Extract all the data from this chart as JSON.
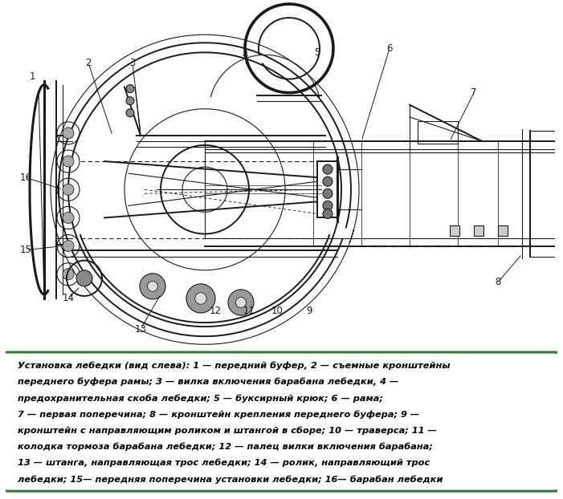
{
  "caption_lines": [
    "Установка лебедки (вид слева): 1 — передний буфер, 2 — съемные кронштейны",
    "переднего буфера рамы; 3 — вилка включения барабана лебедки, 4 —",
    "предохранительная скоба лебедки; 5 — буксирный крюк; 6 — рама;",
    "7 — первая поперечина; 8 — кронштейн крепления переднего буфера; 9 —",
    "кронштейн с направляющим роликом и штангой в сборе; 10 — траверса; 11 —",
    "колодка тормоза барабана лебедки; 12 — палец вилки включения барабана;",
    "13 — штанга, направляющая трос лебедки; 14 — ролик, направляющий трос",
    "лебедки; 15— передняя поперечина установки лебедки; 16— барабан лебедки"
  ],
  "bg_color": "#ffffff",
  "caption_bg": "#ffffff",
  "caption_border": "#2e7d2e",
  "caption_text_color": "#000000",
  "fig_width": 7.01,
  "fig_height": 6.22,
  "dpi": 100,
  "caption_fontsize": 8.2,
  "label_fontsize": 8.5
}
